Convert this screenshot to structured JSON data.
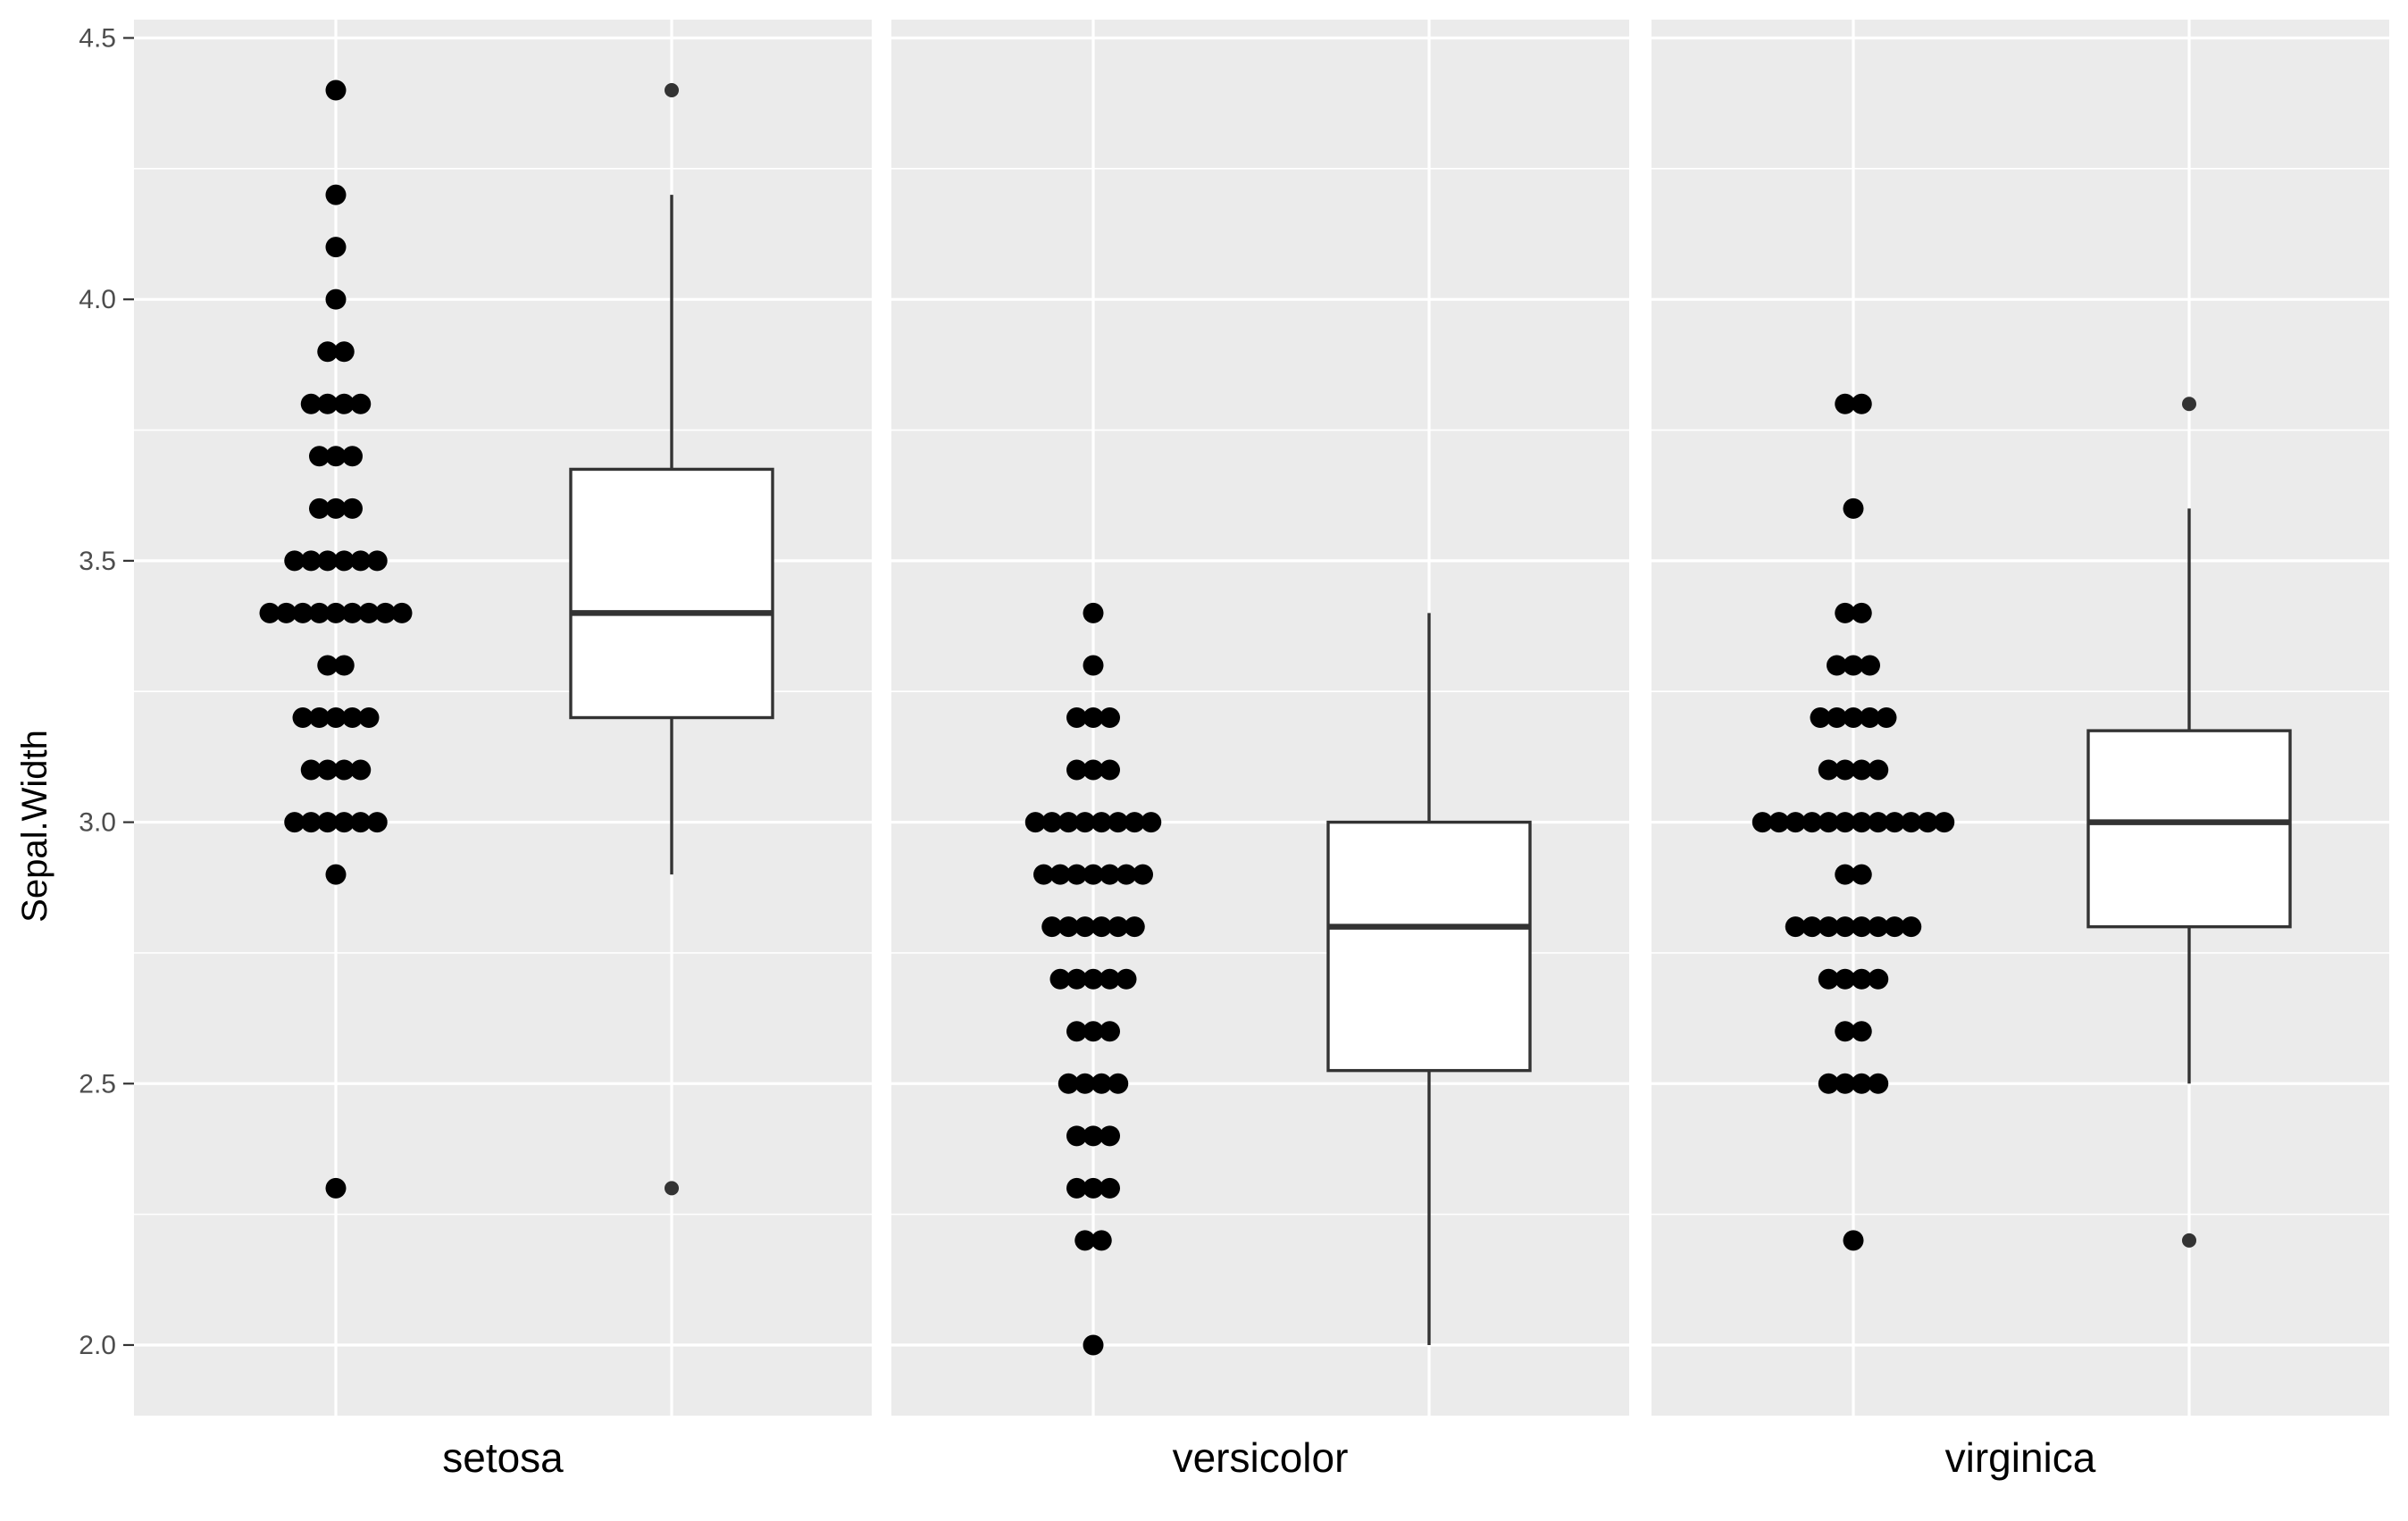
{
  "chart_data": {
    "type": "dotplot+boxplot",
    "ylabel": "Sepal.Width",
    "ylim": [
      1.865,
      4.535
    ],
    "y_ticks": [
      2.0,
      2.5,
      3.0,
      3.5,
      4.0,
      4.5
    ],
    "y_tick_labels": [
      "2.0",
      "2.5",
      "3.0",
      "3.5",
      "4.0",
      "4.5"
    ],
    "y_minor": [
      2.25,
      2.75,
      3.25,
      3.75,
      4.25
    ],
    "grid": true,
    "colors": {
      "panel": "#ebebeb",
      "grid": "#ffffff",
      "dots": "#000000",
      "box_line": "#333333",
      "box_fill": "#ffffff"
    },
    "panels": [
      {
        "category": "setosa",
        "dots": [
          {
            "y": 2.3,
            "count": 1
          },
          {
            "y": 2.9,
            "count": 1
          },
          {
            "y": 3.0,
            "count": 6
          },
          {
            "y": 3.1,
            "count": 4
          },
          {
            "y": 3.2,
            "count": 5
          },
          {
            "y": 3.3,
            "count": 2
          },
          {
            "y": 3.4,
            "count": 9
          },
          {
            "y": 3.5,
            "count": 6
          },
          {
            "y": 3.6,
            "count": 3
          },
          {
            "y": 3.7,
            "count": 3
          },
          {
            "y": 3.8,
            "count": 4
          },
          {
            "y": 3.9,
            "count": 2
          },
          {
            "y": 4.0,
            "count": 1
          },
          {
            "y": 4.1,
            "count": 1
          },
          {
            "y": 4.2,
            "count": 1
          },
          {
            "y": 4.4,
            "count": 1
          }
        ],
        "box": {
          "lower_whisker": 2.9,
          "q1": 3.2,
          "median": 3.4,
          "q3": 3.675,
          "upper_whisker": 4.2,
          "outliers": [
            2.3,
            4.4
          ]
        }
      },
      {
        "category": "versicolor",
        "dots": [
          {
            "y": 2.0,
            "count": 1
          },
          {
            "y": 2.2,
            "count": 2
          },
          {
            "y": 2.3,
            "count": 3
          },
          {
            "y": 2.4,
            "count": 3
          },
          {
            "y": 2.5,
            "count": 4
          },
          {
            "y": 2.6,
            "count": 3
          },
          {
            "y": 2.7,
            "count": 5
          },
          {
            "y": 2.8,
            "count": 6
          },
          {
            "y": 2.9,
            "count": 7
          },
          {
            "y": 3.0,
            "count": 8
          },
          {
            "y": 3.1,
            "count": 3
          },
          {
            "y": 3.2,
            "count": 3
          },
          {
            "y": 3.3,
            "count": 1
          },
          {
            "y": 3.4,
            "count": 1
          }
        ],
        "box": {
          "lower_whisker": 2.0,
          "q1": 2.525,
          "median": 2.8,
          "q3": 3.0,
          "upper_whisker": 3.4,
          "outliers": []
        }
      },
      {
        "category": "virginica",
        "dots": [
          {
            "y": 2.2,
            "count": 1
          },
          {
            "y": 2.5,
            "count": 4
          },
          {
            "y": 2.6,
            "count": 2
          },
          {
            "y": 2.7,
            "count": 4
          },
          {
            "y": 2.8,
            "count": 8
          },
          {
            "y": 2.9,
            "count": 2
          },
          {
            "y": 3.0,
            "count": 12
          },
          {
            "y": 3.1,
            "count": 4
          },
          {
            "y": 3.2,
            "count": 5
          },
          {
            "y": 3.3,
            "count": 3
          },
          {
            "y": 3.4,
            "count": 2
          },
          {
            "y": 3.6,
            "count": 1
          },
          {
            "y": 3.8,
            "count": 2
          }
        ],
        "box": {
          "lower_whisker": 2.5,
          "q1": 2.8,
          "median": 3.0,
          "q3": 3.175,
          "upper_whisker": 3.6,
          "outliers": [
            2.2,
            3.8
          ]
        }
      }
    ]
  }
}
